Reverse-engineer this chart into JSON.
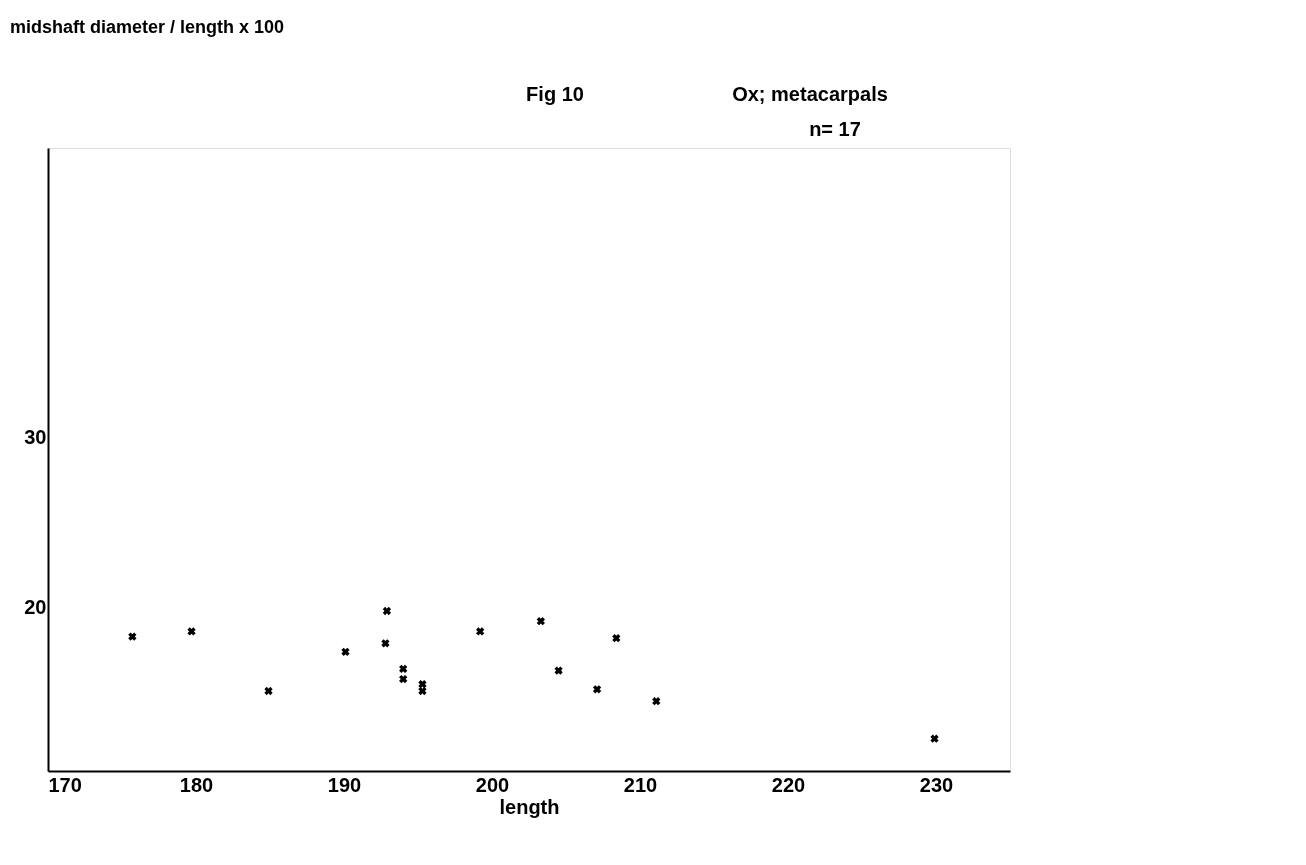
{
  "chart_data": {
    "type": "scatter",
    "title": "Fig 10",
    "subtitle": "Ox; metacarpals",
    "annotations": [
      "n= 17",
      "midshaft diameter / length x 100"
    ],
    "xlabel": "length",
    "x": [
      175.7,
      179.7,
      184.9,
      190.1,
      192.9,
      192.8,
      194.0,
      194.0,
      195.3,
      195.3,
      199.2,
      203.3,
      204.5,
      207.1,
      208.4,
      211.1,
      229.9
    ],
    "values": [
      18.3,
      18.6,
      15.1,
      17.4,
      19.8,
      17.9,
      16.4,
      15.8,
      15.5,
      15.1,
      18.6,
      19.2,
      16.3,
      15.2,
      18.2,
      14.5,
      12.3
    ],
    "color": "#000000",
    "marker": "cross",
    "xlim": [
      170,
      235
    ],
    "xticks": [
      170,
      180,
      190,
      200,
      210,
      220,
      230
    ],
    "ylim": [
      10.4,
      47
    ],
    "yticks": [
      20,
      30
    ],
    "grid": false
  }
}
